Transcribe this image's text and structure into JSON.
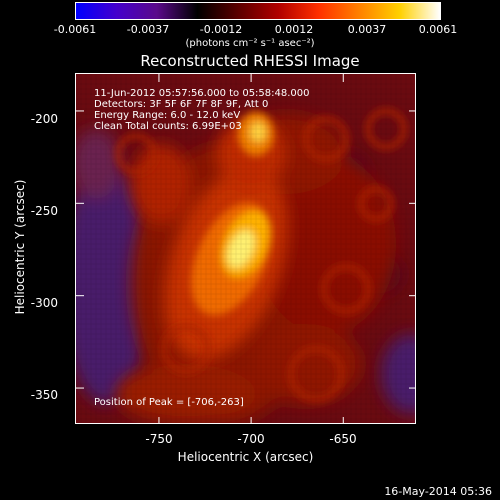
{
  "colorbar": {
    "ticks": [
      "-0.0061",
      "-0.0037",
      "-0.0012",
      "0.0012",
      "0.0037",
      "0.0061"
    ],
    "units": "(photons cm⁻² s⁻¹ asec⁻²)",
    "gradient": [
      "#0000ff",
      "#4400cc",
      "#5a0a8a",
      "#000000",
      "#5a0000",
      "#b00000",
      "#ff3000",
      "#ff8000",
      "#ffd000",
      "#ffffff"
    ]
  },
  "title": "Reconstructed RHESSI Image",
  "info": {
    "line1": "11-Jun-2012 05:57:56.000 to 05:58:48.000",
    "line2": "Detectors: 3F 5F 6F 7F 8F 9F, Att 0",
    "line3": "Energy Range: 6.0 - 12.0 keV",
    "line4": "Clean     Total counts: 6.99E+03",
    "peak": "Position of Peak = [-706,-263]"
  },
  "axes": {
    "xlabel": "Heliocentric X (arcsec)",
    "ylabel": "Heliocentric Y (arcsec)",
    "xrange": [
      -795,
      -610
    ],
    "yrange": [
      -370,
      -180
    ],
    "xticks": [
      "-750",
      "-700",
      "-650"
    ],
    "yticks": [
      "-200",
      "-250",
      "-300",
      "-350"
    ],
    "xtick_values": [
      -750,
      -700,
      -650
    ],
    "ytick_values": [
      -200,
      -250,
      -300,
      -350
    ]
  },
  "footer": "16-May-2014 05:36"
}
